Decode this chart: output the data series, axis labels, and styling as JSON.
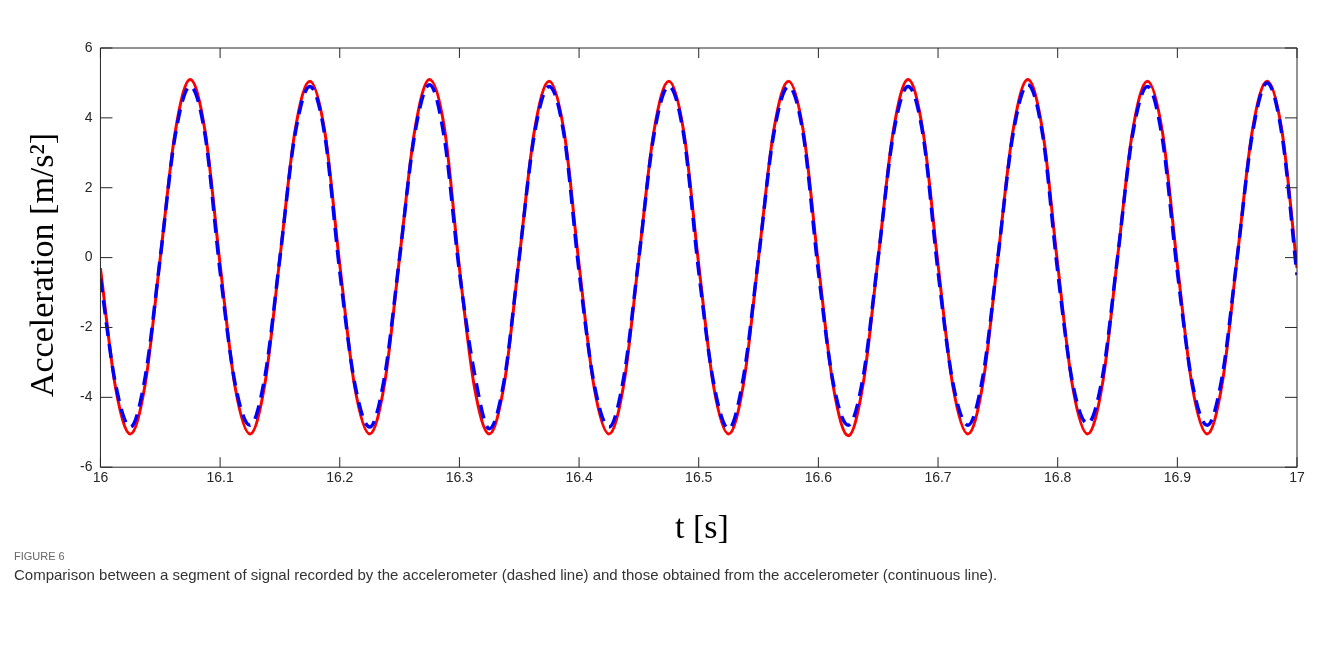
{
  "chart_data": {
    "type": "line",
    "xlabel": "t [s]",
    "ylabel": "Acceleration [m/s²]",
    "xlim": [
      16,
      17
    ],
    "xticks": [
      16,
      16.1,
      16.2,
      16.3,
      16.4,
      16.5,
      16.6,
      16.7,
      16.8,
      16.9,
      17
    ],
    "ylim": [
      -6,
      6
    ],
    "yticks": [
      -6,
      -4,
      -2,
      0,
      2,
      4,
      6
    ],
    "grid": false,
    "legend": false,
    "marker": "none",
    "x": [
      16,
      16.0125,
      16.025,
      16.0375,
      16.05,
      16.0625,
      16.075,
      16.0875,
      16.1,
      16.1125,
      16.125,
      16.1375,
      16.15,
      16.1625,
      16.175,
      16.1875,
      16.2,
      16.2125,
      16.225,
      16.2375,
      16.25,
      16.2625,
      16.275,
      16.2875,
      16.3,
      16.3125,
      16.325,
      16.3375,
      16.35,
      16.3625,
      16.375,
      16.3875,
      16.4,
      16.4125,
      16.425,
      16.4375,
      16.45,
      16.4625,
      16.475,
      16.4875,
      16.5,
      16.5125,
      16.525,
      16.5375,
      16.55,
      16.5625,
      16.575,
      16.5875,
      16.6,
      16.6125,
      16.625,
      16.6375,
      16.65,
      16.6625,
      16.675,
      16.6875,
      16.7,
      16.7125,
      16.725,
      16.7375,
      16.75,
      16.7625,
      16.775,
      16.7875,
      16.8,
      16.8125,
      16.825,
      16.8375,
      16.85,
      16.8625,
      16.875,
      16.8875,
      16.9,
      16.9125,
      16.925,
      16.9375,
      16.95,
      16.9625,
      16.975,
      16.9875,
      17
    ],
    "series": [
      {
        "color": "#ff0000",
        "line_style": "solid",
        "values": [
          -0.3,
          -3.7,
          -5.05,
          -3.6,
          0,
          3.6,
          5.1,
          3.6,
          -0.2,
          -3.7,
          -5.05,
          -3.6,
          0,
          3.6,
          5.05,
          3.6,
          -0.2,
          -3.7,
          -5.05,
          -3.6,
          0,
          3.6,
          5.1,
          3.7,
          -0.3,
          -3.7,
          -5.05,
          -3.6,
          0,
          3.6,
          5.05,
          3.6,
          -0.2,
          -3.7,
          -5.05,
          -3.6,
          0,
          3.6,
          5.05,
          3.6,
          -0.2,
          -3.7,
          -5.05,
          -3.6,
          0,
          3.6,
          5.05,
          3.6,
          -0.2,
          -3.7,
          -5.1,
          -3.6,
          0,
          3.6,
          5.1,
          3.6,
          -0.2,
          -3.7,
          -5.05,
          -3.6,
          0,
          3.6,
          5.1,
          3.6,
          -0.2,
          -3.7,
          -5.05,
          -3.6,
          0,
          3.6,
          5.05,
          3.6,
          -0.2,
          -3.7,
          -5.05,
          -3.6,
          0,
          3.6,
          5.05,
          3.6,
          -0.3
        ]
      },
      {
        "color": "#0000ff",
        "line_style": "dashed",
        "values": [
          -0.6,
          -3.6,
          -4.85,
          -3.4,
          0,
          3.5,
          4.9,
          3.5,
          -0.4,
          -3.6,
          -4.8,
          -3.4,
          0,
          3.5,
          4.9,
          3.5,
          -0.4,
          -3.6,
          -4.85,
          -3.4,
          0,
          3.5,
          4.95,
          3.4,
          -0.4,
          -3.3,
          -4.9,
          -3.5,
          0,
          3.5,
          4.9,
          3.5,
          -0.4,
          -3.6,
          -4.85,
          -3.4,
          0,
          3.5,
          4.9,
          3.5,
          -0.4,
          -3.6,
          -4.9,
          -3.4,
          0,
          3.5,
          4.9,
          3.5,
          -0.4,
          -3.6,
          -4.8,
          -3.4,
          0,
          3.5,
          4.9,
          3.5,
          -0.4,
          -3.6,
          -4.8,
          -3.4,
          0,
          3.5,
          4.95,
          3.5,
          -0.4,
          -3.6,
          -4.75,
          -3.4,
          0,
          3.5,
          4.9,
          3.4,
          -0.4,
          -3.6,
          -4.8,
          -3.4,
          0,
          3.5,
          5.0,
          3.5,
          -0.5
        ]
      }
    ],
    "annotations": [
      "FIGURE 6",
      "Comparison between a segment of signal recorded by the accelerometer (dashed line) and those obtained from the accelerometer (continuous line)."
    ]
  }
}
